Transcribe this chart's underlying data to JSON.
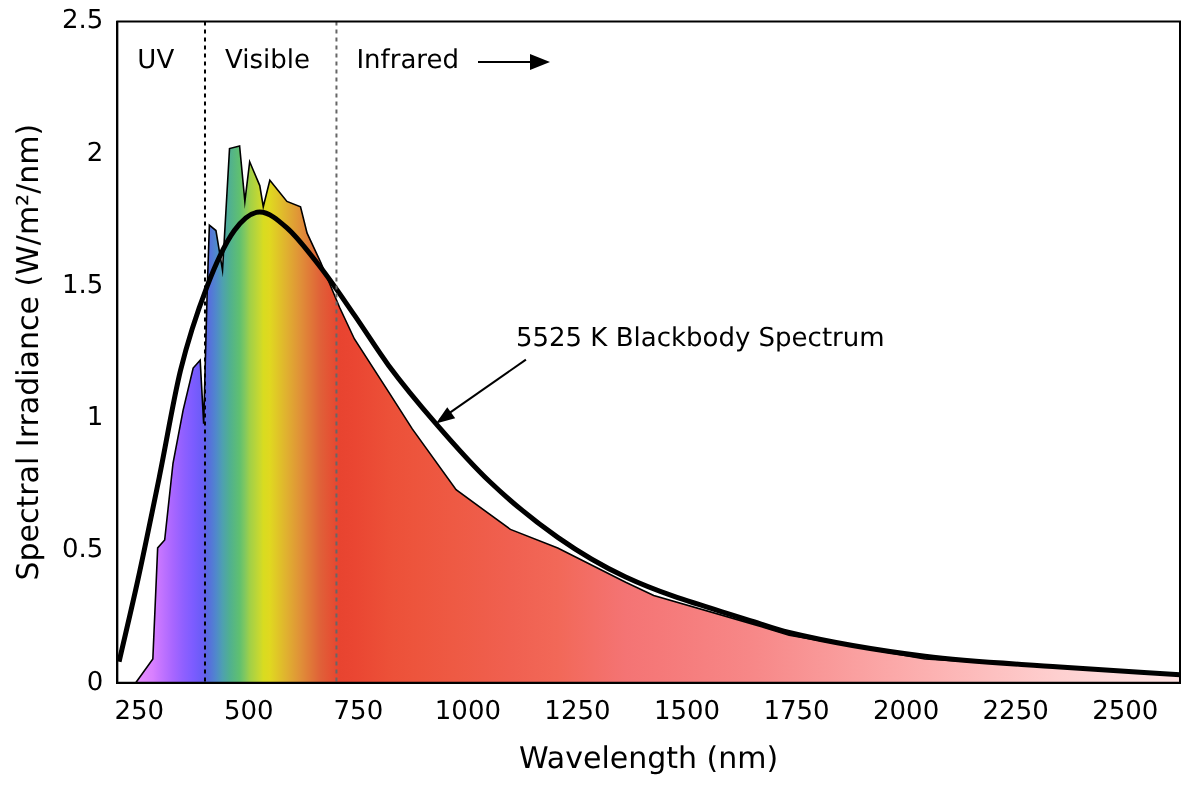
{
  "chart_data": {
    "type": "area",
    "xlabel": "Wavelength (nm)",
    "ylabel": "Spectral Irradiance (W/m²/nm)",
    "xlim": [
      200,
      2625
    ],
    "xticks": [
      250,
      500,
      750,
      1000,
      1250,
      1500,
      1750,
      2000,
      2250,
      2500
    ],
    "ylim": [
      0,
      2.5
    ],
    "yticks": [
      0,
      0.5,
      1,
      1.5,
      2,
      2.5
    ],
    "grid": false,
    "legend": false,
    "series": [
      {
        "x": [
          242,
          281,
          292,
          308,
          327,
          350,
          373,
          389,
          397,
          405,
          410,
          425,
          440,
          456,
          479,
          491,
          502,
          525,
          533,
          548,
          587,
          618,
          633,
          664,
          707,
          741,
          819,
          873,
          973,
          1097,
          1205,
          1360,
          1424,
          1654,
          1733,
          2043,
          2351,
          2625
        ],
        "values": [
          0,
          0.09,
          0.51,
          0.54,
          0.83,
          1.03,
          1.19,
          1.22,
          0.98,
          1.48,
          1.73,
          1.71,
          1.56,
          2.02,
          2.03,
          1.82,
          1.97,
          1.88,
          1.8,
          1.9,
          1.82,
          1.8,
          1.7,
          1.59,
          1.42,
          1.3,
          1.1,
          0.96,
          0.73,
          0.58,
          0.51,
          0.38,
          0.33,
          0.22,
          0.18,
          0.09,
          0.06,
          0.03
        ],
        "colors": [
          "#e890ff",
          "#d880ff",
          "#cc78ff",
          "#bb70ff",
          "#a866ff",
          "#9060ff",
          "#7c5cff",
          "#6e5cf8",
          "#6860f0",
          "#5a68e0",
          "#5670dc",
          "#5088cc",
          "#4ea0b0",
          "#50b090",
          "#60c070",
          "#80c860",
          "#a0d048",
          "#c8d830",
          "#d8dc20",
          "#e0d820",
          "#e0b030",
          "#e09038",
          "#e08038",
          "#e06038",
          "#e84430",
          "#ea4632",
          "#ec5038",
          "#ed543c",
          "#ee5a44",
          "#f06050",
          "#f26858",
          "#f47474",
          "#f57878",
          "#f78888",
          "#f89090",
          "#fcb0b0",
          "#fed0d0",
          "#ffe4e4"
        ]
      },
      {
        "type": "line",
        "color": "#000000",
        "x": [
          204,
          247,
          296,
          344,
          405,
          467,
          525,
          587,
          664,
          741,
          819,
          927,
          1050,
          1205,
          1360,
          1654,
          1733,
          2043,
          2351,
          2625
        ],
        "values": [
          0.08,
          0.39,
          0.78,
          1.18,
          1.5,
          1.71,
          1.78,
          1.72,
          1.57,
          1.39,
          1.2,
          0.98,
          0.76,
          0.55,
          0.4,
          0.23,
          0.19,
          0.1,
          0.06,
          0.03
        ]
      }
    ],
    "ref_lines": [
      {
        "axis": "x",
        "value": 400,
        "line_style": "dotted",
        "color": "#000000"
      },
      {
        "axis": "x",
        "value": 700,
        "line_style": "dotted",
        "color": "#666666"
      }
    ],
    "annotations": [
      "UV",
      "Visible",
      "Infrared",
      {
        "text": "5525 K Blackbody Spectrum",
        "x": 927,
        "y": 0.98
      }
    ]
  }
}
